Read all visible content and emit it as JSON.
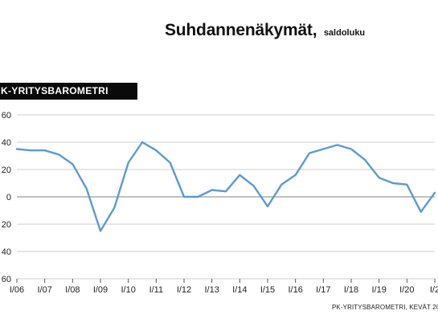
{
  "header": {
    "title": "Suhdannenäkymät,",
    "subtitle": "saldoluku"
  },
  "panel_label": "K-YRITYSBAROMETRI",
  "source": "PK-YRITYSBAROMETRI, KEVÄT 20",
  "colors": {
    "line": "#5b9bd5",
    "grid": "#cfcfcf",
    "zero_line": "#9a9a9a",
    "label_bg": "#0a0a0a"
  },
  "chart_data": {
    "type": "line",
    "title": "Suhdannenäkymät, saldoluku",
    "ylim": [
      -60,
      60
    ],
    "yticks": [
      -60,
      -40,
      -20,
      0,
      20,
      40,
      60
    ],
    "ytick_labels": [
      "60",
      "40",
      "20",
      "0",
      "20",
      "40",
      "60"
    ],
    "xticks": [
      "I/06",
      "I/07",
      "I/08",
      "I/09",
      "I/10",
      "I/11",
      "I/12",
      "I/13",
      "I/14",
      "I/15",
      "I/16",
      "I/17",
      "I/18",
      "I/19",
      "I/20",
      "I/2"
    ],
    "grid": "horizontal",
    "series": [
      {
        "values": [
          35,
          34,
          34,
          31,
          24,
          6,
          -25,
          -8,
          25,
          40,
          34,
          25,
          0,
          0,
          5,
          4,
          16,
          8,
          -7,
          9,
          16,
          32,
          35,
          38,
          35,
          27,
          14,
          10,
          9,
          -11,
          3
        ]
      }
    ]
  }
}
